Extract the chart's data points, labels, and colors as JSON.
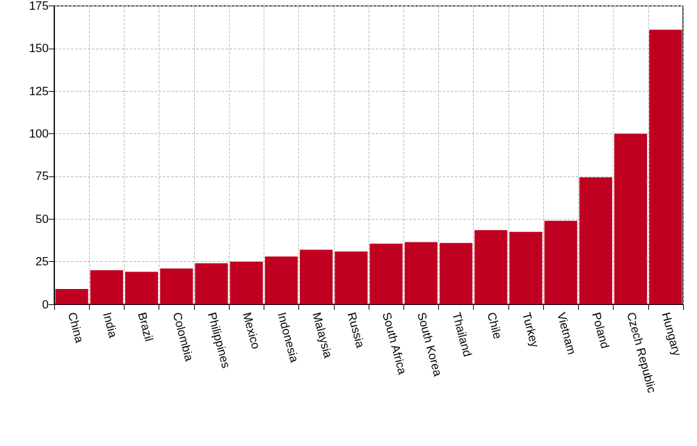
{
  "chart_data": {
    "type": "bar",
    "categories": [
      "China",
      "India",
      "Brazil",
      "Colombia",
      "Philippines",
      "Mexico",
      "Indonesia",
      "Malaysia",
      "Russia",
      "South Africa",
      "South Korea",
      "Thailand",
      "Chile",
      "Turkey",
      "Vietnam",
      "Poland",
      "Czech Republic",
      "Hungary"
    ],
    "values": [
      9,
      20,
      19,
      21,
      24,
      25,
      28,
      32,
      31,
      35.5,
      36.5,
      36,
      43.5,
      42.5,
      49,
      74.5,
      100,
      161
    ],
    "color": "#c00020",
    "ylim": [
      0,
      175
    ],
    "yticks": [
      0,
      25,
      50,
      75,
      100,
      125,
      150,
      175
    ],
    "grid": true
  }
}
